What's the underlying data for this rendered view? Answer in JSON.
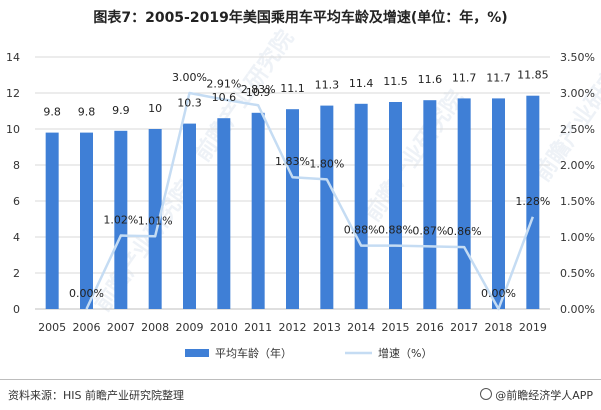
{
  "title": "图表7：2005-2019年美国乘用车平均车龄及增速(单位：年，%)",
  "source": "资料来源：HIS 前瞻产业研究院整理",
  "brand": "@前瞻经济学人APP",
  "watermark": "前瞻产业研究院",
  "colors": {
    "bar": "#3f7fd6",
    "line": "#c5dcf3",
    "grid": "#d9d9d9",
    "axis": "#bfbfbf",
    "text": "#333333"
  },
  "chart_data": {
    "type": "bar",
    "categories": [
      "2005",
      "2006",
      "2007",
      "2008",
      "2009",
      "2010",
      "2011",
      "2012",
      "2013",
      "2014",
      "2015",
      "2016",
      "2017",
      "2018",
      "2019"
    ],
    "series": [
      {
        "name": "平均车龄（年）",
        "type": "bar",
        "axis": "left",
        "values": [
          9.8,
          9.8,
          9.9,
          10,
          10.3,
          10.6,
          10.9,
          11.1,
          11.3,
          11.4,
          11.5,
          11.6,
          11.7,
          11.7,
          11.85
        ],
        "labels": [
          "9.8",
          "9.8",
          "9.9",
          "10",
          "10.3",
          "10.6",
          "10.9",
          "11.1",
          "11.3",
          "11.4",
          "11.5",
          "11.6",
          "11.7",
          "11.7",
          "11.85"
        ]
      },
      {
        "name": "增速（%）",
        "type": "line",
        "axis": "right",
        "values": [
          null,
          0.0,
          1.02,
          1.01,
          3.0,
          2.91,
          2.83,
          1.83,
          1.8,
          0.88,
          0.88,
          0.87,
          0.86,
          0.0,
          1.28
        ],
        "labels": [
          "",
          "0.00%",
          "1.02%",
          "1.01%",
          "3.00%",
          "2.91%",
          "2.83%",
          "1.83%",
          "1.80%",
          "0.88%",
          "0.88%",
          "0.87%",
          "0.86%",
          "0.00%",
          "1.28%"
        ]
      }
    ],
    "y_left": {
      "min": 0,
      "max": 14,
      "ticks": [
        "0",
        "2",
        "4",
        "6",
        "8",
        "10",
        "12",
        "14"
      ]
    },
    "y_right": {
      "min": 0,
      "max": 3.5,
      "ticks": [
        "0.00%",
        "0.50%",
        "1.00%",
        "1.50%",
        "2.00%",
        "2.50%",
        "3.00%",
        "3.50%"
      ]
    },
    "grid": true,
    "legend": "bottom-center"
  }
}
